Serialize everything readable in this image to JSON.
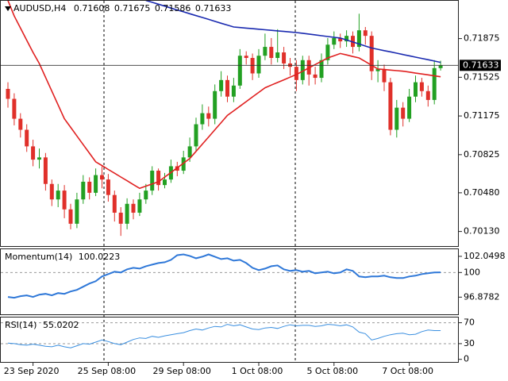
{
  "chart_data": [
    {
      "type": "candlestick",
      "title": "AUDUSD,H4",
      "up_color": "#22a022",
      "down_color": "#e0302a",
      "categories": [
        null,
        null,
        null,
        null,
        "23 Sep 2020",
        null,
        null,
        null,
        null,
        null,
        null,
        null,
        null,
        null,
        null,
        null,
        "25 Sep 08:00",
        null,
        null,
        null,
        null,
        null,
        null,
        null,
        null,
        null,
        null,
        null,
        "29 Sep 08:00",
        null,
        null,
        null,
        null,
        null,
        null,
        null,
        null,
        null,
        null,
        null,
        "1 Oct 08:00",
        null,
        null,
        null,
        null,
        null,
        null,
        null,
        null,
        null,
        null,
        null,
        "5 Oct 08:00",
        null,
        null,
        null,
        null,
        null,
        null,
        null,
        null,
        null,
        null,
        null,
        "7 Oct 08:00",
        null,
        null,
        null,
        null,
        null
      ],
      "open": [
        0.7142,
        0.7133,
        0.7115,
        0.7105,
        0.709,
        0.7078,
        0.708,
        0.7056,
        0.7042,
        0.705,
        0.7033,
        0.702,
        0.7042,
        0.7058,
        0.7048,
        0.7064,
        0.706,
        0.7046,
        0.703,
        0.702,
        0.7038,
        0.703,
        0.7042,
        0.705,
        0.7068,
        0.7055,
        0.706,
        0.7072,
        0.7068,
        0.708,
        0.709,
        0.711,
        0.712,
        0.7115,
        0.714,
        0.715,
        0.7135,
        0.7145,
        0.7172,
        0.717,
        0.7156,
        0.7172,
        0.718,
        0.717,
        0.7175,
        0.7165,
        0.7162,
        0.715,
        0.7168,
        0.7155,
        0.7152,
        0.7168,
        0.7182,
        0.7188,
        0.7185,
        0.719,
        0.718,
        0.7195,
        0.719,
        0.7158,
        0.716,
        0.7148,
        0.7105,
        0.7125,
        0.7115,
        0.7135,
        0.7148,
        0.714,
        0.7132,
        0.71608
      ],
      "high": [
        0.7148,
        0.7138,
        0.712,
        0.711,
        0.7096,
        0.7088,
        0.7084,
        0.706,
        0.7056,
        0.7055,
        0.7038,
        0.7048,
        0.7064,
        0.7062,
        0.707,
        0.7072,
        0.7065,
        0.705,
        0.7035,
        0.7043,
        0.7042,
        0.7048,
        0.7056,
        0.7072,
        0.707,
        0.7066,
        0.7078,
        0.7076,
        0.7086,
        0.7098,
        0.7116,
        0.7128,
        0.7126,
        0.7146,
        0.7158,
        0.7154,
        0.7152,
        0.7178,
        0.7176,
        0.7174,
        0.7178,
        0.7192,
        0.7188,
        0.7196,
        0.718,
        0.717,
        0.7168,
        0.7172,
        0.7172,
        0.7162,
        0.7174,
        0.7188,
        0.7194,
        0.7192,
        0.7195,
        0.7194,
        0.721,
        0.7198,
        0.7194,
        0.7168,
        0.7164,
        0.7152,
        0.7132,
        0.713,
        0.7142,
        0.7154,
        0.7152,
        0.7145,
        0.7168,
        0.71675
      ],
      "low": [
        0.7125,
        0.7109,
        0.7098,
        0.7085,
        0.7072,
        0.707,
        0.705,
        0.7036,
        0.7035,
        0.7025,
        0.7015,
        0.7016,
        0.7038,
        0.7042,
        0.7045,
        0.7052,
        0.704,
        0.7022,
        0.7009,
        0.7015,
        0.7024,
        0.7027,
        0.7038,
        0.7046,
        0.705,
        0.7052,
        0.7057,
        0.7063,
        0.7065,
        0.7076,
        0.7086,
        0.7105,
        0.7108,
        0.711,
        0.7135,
        0.713,
        0.713,
        0.7142,
        0.7164,
        0.715,
        0.7152,
        0.7168,
        0.7164,
        0.7166,
        0.716,
        0.7154,
        0.714,
        0.7146,
        0.7145,
        0.7146,
        0.7148,
        0.7164,
        0.7178,
        0.7179,
        0.718,
        0.7174,
        0.7176,
        0.7182,
        0.715,
        0.7148,
        0.714,
        0.71,
        0.7098,
        0.7108,
        0.7112,
        0.713,
        0.7135,
        0.7126,
        0.7128,
        0.71586
      ],
      "close": [
        0.7133,
        0.7115,
        0.7105,
        0.709,
        0.7078,
        0.708,
        0.7056,
        0.7042,
        0.705,
        0.7033,
        0.702,
        0.7042,
        0.7058,
        0.7048,
        0.7064,
        0.706,
        0.7046,
        0.703,
        0.702,
        0.7038,
        0.703,
        0.7042,
        0.705,
        0.7068,
        0.7055,
        0.706,
        0.7072,
        0.7068,
        0.708,
        0.709,
        0.711,
        0.712,
        0.7115,
        0.714,
        0.715,
        0.7135,
        0.7145,
        0.7172,
        0.717,
        0.7156,
        0.7172,
        0.718,
        0.717,
        0.7175,
        0.7165,
        0.7162,
        0.715,
        0.7168,
        0.7155,
        0.7152,
        0.7168,
        0.7182,
        0.7188,
        0.7185,
        0.719,
        0.718,
        0.7195,
        0.719,
        0.7158,
        0.716,
        0.7148,
        0.7105,
        0.7125,
        0.7115,
        0.7135,
        0.7148,
        0.714,
        0.7132,
        0.71608,
        0.71633
      ],
      "lines": [
        {
          "color": "#1a2ab0",
          "values": [
            null,
            null,
            null,
            null,
            null,
            null,
            null,
            null,
            null,
            null,
            null,
            null,
            null,
            null,
            null,
            null,
            null,
            null,
            null,
            null,
            null,
            null,
            0.7222,
            0.72203,
            0.72186,
            0.72169,
            0.72151,
            0.72134,
            0.72117,
            0.721,
            0.72083,
            0.72066,
            0.72049,
            0.72031,
            0.72014,
            0.71997,
            0.7198,
            0.71975,
            0.7197,
            0.71965,
            0.7196,
            0.71955,
            0.7195,
            0.71945,
            0.7194,
            0.71935,
            0.7193,
            0.71923,
            0.71916,
            0.71909,
            0.71901,
            0.71894,
            0.71887,
            0.7188,
            0.71862,
            0.71844,
            0.71826,
            0.71808,
            0.7179,
            0.71778,
            0.71766,
            0.71755,
            0.71743,
            0.71731,
            0.71719,
            0.71707,
            0.71696,
            0.71684,
            0.71672,
            0.7166
          ]
        },
        {
          "color": "#e02020",
          "values": [
            0.7222,
            0.7208,
            0.7197,
            0.7186,
            0.7175,
            0.7165,
            0.71525,
            0.714,
            0.71275,
            0.7115,
            0.71072,
            0.70994,
            0.70916,
            0.70838,
            0.7076,
            0.70726,
            0.70691,
            0.70657,
            0.70623,
            0.70589,
            0.70554,
            0.7052,
            0.7054,
            0.7056,
            0.7058,
            0.70622,
            0.70664,
            0.70706,
            0.70748,
            0.7079,
            0.70855,
            0.7092,
            0.70985,
            0.7105,
            0.71115,
            0.7118,
            0.71222,
            0.71263,
            0.71305,
            0.71347,
            0.71388,
            0.7143,
            0.71454,
            0.71478,
            0.71502,
            0.71526,
            0.7155,
            0.7158,
            0.7161,
            0.7164,
            0.7167,
            0.717,
            0.7172,
            0.7174,
            0.71727,
            0.71713,
            0.717,
            0.71667,
            0.71633,
            0.716,
            0.71595,
            0.7159,
            0.71585,
            0.7158,
            0.71572,
            0.71563,
            0.71555,
            0.71547,
            0.71538,
            0.7153
          ]
        }
      ],
      "ylim": [
        0.69998,
        0.72217
      ],
      "yticks": [
        0.71875,
        0.71525,
        0.71175,
        0.70825,
        {
          "value": 0.7048,
          "label": "0.70480"
        },
        {
          "value": 0.7013,
          "label": "0.70130"
        }
      ]
    },
    {
      "type": "line",
      "title": "Momentum(14)",
      "color": "#2f78d8",
      "level": 100,
      "values": [
        96.9,
        96.8,
        97.0,
        97.1,
        96.9,
        97.2,
        97.3,
        97.1,
        97.4,
        97.3,
        97.6,
        97.8,
        98.2,
        98.6,
        98.9,
        99.5,
        99.8,
        100.1,
        100.0,
        100.4,
        100.6,
        100.5,
        100.8,
        101.0,
        101.2,
        101.3,
        101.6,
        102.2,
        102.3,
        102.1,
        101.8,
        102.0,
        102.3,
        102.0,
        101.7,
        101.8,
        101.5,
        101.6,
        101.2,
        100.6,
        100.3,
        100.5,
        100.8,
        100.9,
        100.4,
        100.2,
        100.3,
        100.1,
        100.2,
        99.9,
        100.0,
        100.1,
        99.9,
        100.0,
        100.4,
        100.2,
        99.5,
        99.4,
        99.5,
        99.5,
        99.6,
        99.4,
        99.3,
        99.3,
        99.5,
        99.6,
        99.8,
        99.9,
        100.0,
        100.0223
      ],
      "ylim": [
        94.7,
        102.95
      ],
      "yticks": [
        102.0498,
        100,
        96.8782
      ]
    },
    {
      "type": "line",
      "title": "RSI(14)",
      "color": "#3a8fe0",
      "levels": [
        70,
        30
      ],
      "values": [
        31,
        30,
        28,
        27,
        29,
        27,
        25,
        24,
        27,
        24,
        22,
        26,
        30,
        29,
        33,
        37,
        34,
        30,
        28,
        33,
        38,
        41,
        40,
        44,
        42,
        45,
        47,
        49,
        51,
        55,
        58,
        56,
        60,
        63,
        62,
        67,
        64,
        66,
        62,
        58,
        57,
        60,
        61,
        59,
        63,
        66,
        64,
        65,
        65,
        63,
        64,
        67,
        66,
        64,
        66,
        62,
        52,
        49,
        37,
        40,
        44,
        47,
        49,
        50,
        47,
        48,
        53,
        56,
        55,
        55.0202
      ],
      "ylim": [
        -5,
        80
      ],
      "yticks": [
        70,
        30,
        0
      ]
    }
  ]
}
